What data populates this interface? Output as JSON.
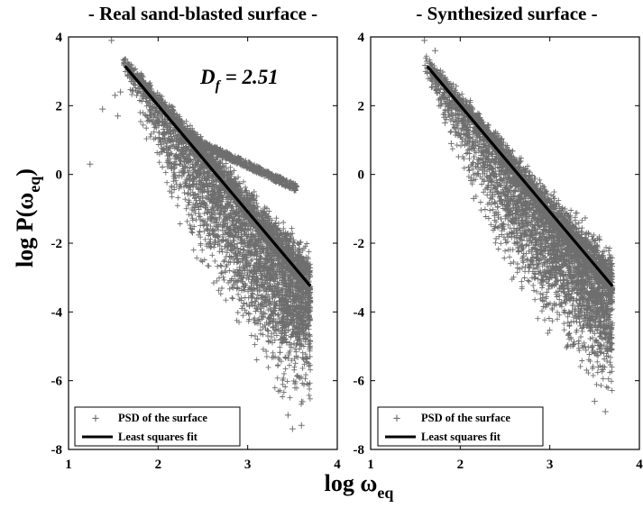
{
  "page": {
    "ylabel_main": "log P(ω",
    "ylabel_sub": "eq",
    "ylabel_close": ")",
    "xlabel_main": "log ω",
    "xlabel_sub": "eq"
  },
  "chart_data": [
    {
      "type": "scatter",
      "title": "- Real sand-blasted surface -",
      "xlim": [
        1,
        4
      ],
      "ylim": [
        -8,
        4
      ],
      "xticks": [
        "1",
        "2",
        "3",
        "4"
      ],
      "yticks": [
        "4",
        "2",
        "0",
        "-2",
        "-4",
        "-6",
        "-8"
      ],
      "annotation": {
        "main": "D",
        "sub": "f",
        "rest": " = 2.51"
      },
      "legend": {
        "placement": "bottom-left",
        "entries": [
          "PSD of the surface",
          "Least squares fit"
        ]
      },
      "series": [
        {
          "name": "PSD of the surface",
          "marker": "+",
          "color": "#6e6e6e",
          "main_cloud": {
            "x_range": [
              1.6,
              3.7
            ],
            "center_at_x": [
              [
                1.6,
                3.3
              ],
              [
                2.0,
                2.0
              ],
              [
                2.5,
                0.4
              ],
              [
                3.0,
                -1.3
              ],
              [
                3.5,
                -2.9
              ],
              [
                3.7,
                -3.5
              ]
            ],
            "spread_below_at_x_max": -7.4,
            "spread_above_at_x_max": -2.0
          },
          "secondary_band": {
            "x_range": [
              2.4,
              3.55
            ],
            "y_range": [
              1.0,
              -0.4
            ]
          },
          "outliers": [
            [
              1.24,
              0.3
            ],
            [
              1.38,
              1.9
            ],
            [
              1.48,
              3.9
            ],
            [
              1.52,
              2.3
            ],
            [
              1.58,
              2.4
            ],
            [
              1.55,
              1.7
            ],
            [
              3.45,
              -7.0
            ],
            [
              3.5,
              -7.4
            ],
            [
              3.6,
              -7.3
            ]
          ]
        },
        {
          "name": "Least squares fit",
          "type": "line",
          "color": "#000000",
          "points": [
            [
              1.63,
              3.15
            ],
            [
              3.7,
              -3.25
            ]
          ]
        }
      ]
    },
    {
      "type": "scatter",
      "title": "- Synthesized surface -",
      "xlim": [
        1,
        4
      ],
      "ylim": [
        -8,
        4
      ],
      "xticks": [
        "1",
        "2",
        "3",
        "4"
      ],
      "yticks": [
        "4",
        "2",
        "0",
        "-2",
        "-4",
        "-6",
        "-8"
      ],
      "legend": {
        "placement": "bottom-left",
        "entries": [
          "PSD of the surface",
          "Least squares fit"
        ]
      },
      "series": [
        {
          "name": "PSD of the surface",
          "marker": "+",
          "color": "#6e6e6e",
          "main_cloud": {
            "x_range": [
              1.6,
              3.7
            ],
            "center_at_x": [
              [
                1.6,
                3.3
              ],
              [
                2.0,
                2.0
              ],
              [
                2.5,
                0.3
              ],
              [
                3.0,
                -1.4
              ],
              [
                3.5,
                -2.9
              ],
              [
                3.7,
                -3.5
              ]
            ],
            "spread_below_at_x_max": -6.9,
            "spread_above_at_x_max": -2.0
          },
          "outliers": [
            [
              1.6,
              3.9
            ],
            [
              1.72,
              3.6
            ],
            [
              1.83,
              1.5
            ],
            [
              1.9,
              0.9
            ],
            [
              2.15,
              -0.7
            ],
            [
              3.5,
              -6.6
            ],
            [
              3.62,
              -6.9
            ]
          ]
        },
        {
          "name": "Least squares fit",
          "type": "line",
          "color": "#000000",
          "points": [
            [
              1.63,
              3.15
            ],
            [
              3.7,
              -3.25
            ]
          ]
        }
      ]
    }
  ]
}
